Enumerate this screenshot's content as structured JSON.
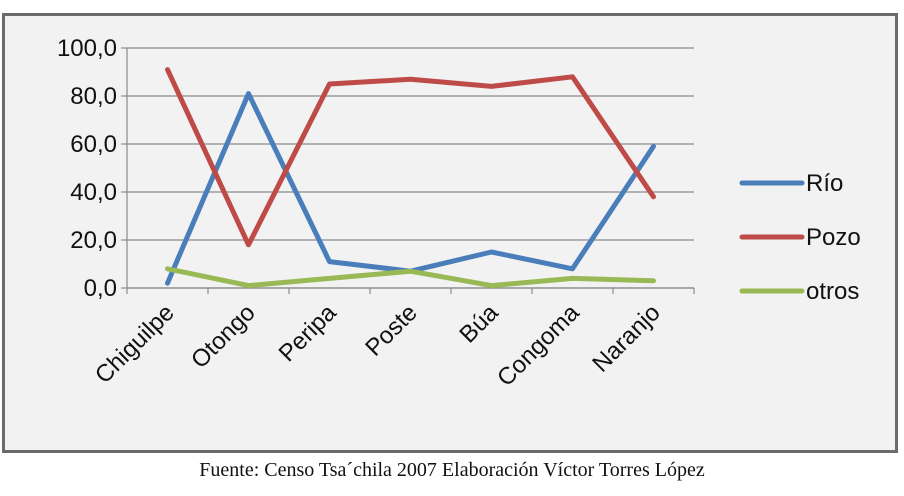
{
  "chart_data": {
    "type": "line",
    "categories": [
      "Chiguilpe",
      "Otongo",
      "Peripa",
      "Poste",
      "Búa",
      "Congoma",
      "Naranjo"
    ],
    "series": [
      {
        "name": "Río",
        "color": "#4a7ebb",
        "values": [
          2.0,
          81.0,
          11.0,
          7.0,
          15.0,
          8.0,
          59.0
        ]
      },
      {
        "name": "Pozo",
        "color": "#be4b48",
        "values": [
          91.0,
          18.0,
          85.0,
          87.0,
          84.0,
          88.0,
          38.0
        ]
      },
      {
        "name": "otros",
        "color": "#98b954",
        "values": [
          8.0,
          1.0,
          4.0,
          7.0,
          1.0,
          4.0,
          3.0
        ]
      }
    ],
    "ylim": [
      0,
      100
    ],
    "yticks": [
      "0,0",
      "20,0",
      "40,0",
      "60,0",
      "80,0",
      "100,0"
    ],
    "grid": true,
    "legend_position": "right",
    "title": "",
    "xlabel": "",
    "ylabel": ""
  },
  "caption": "Fuente: Censo Tsa´chila 2007 Elaboración Víctor Torres López"
}
